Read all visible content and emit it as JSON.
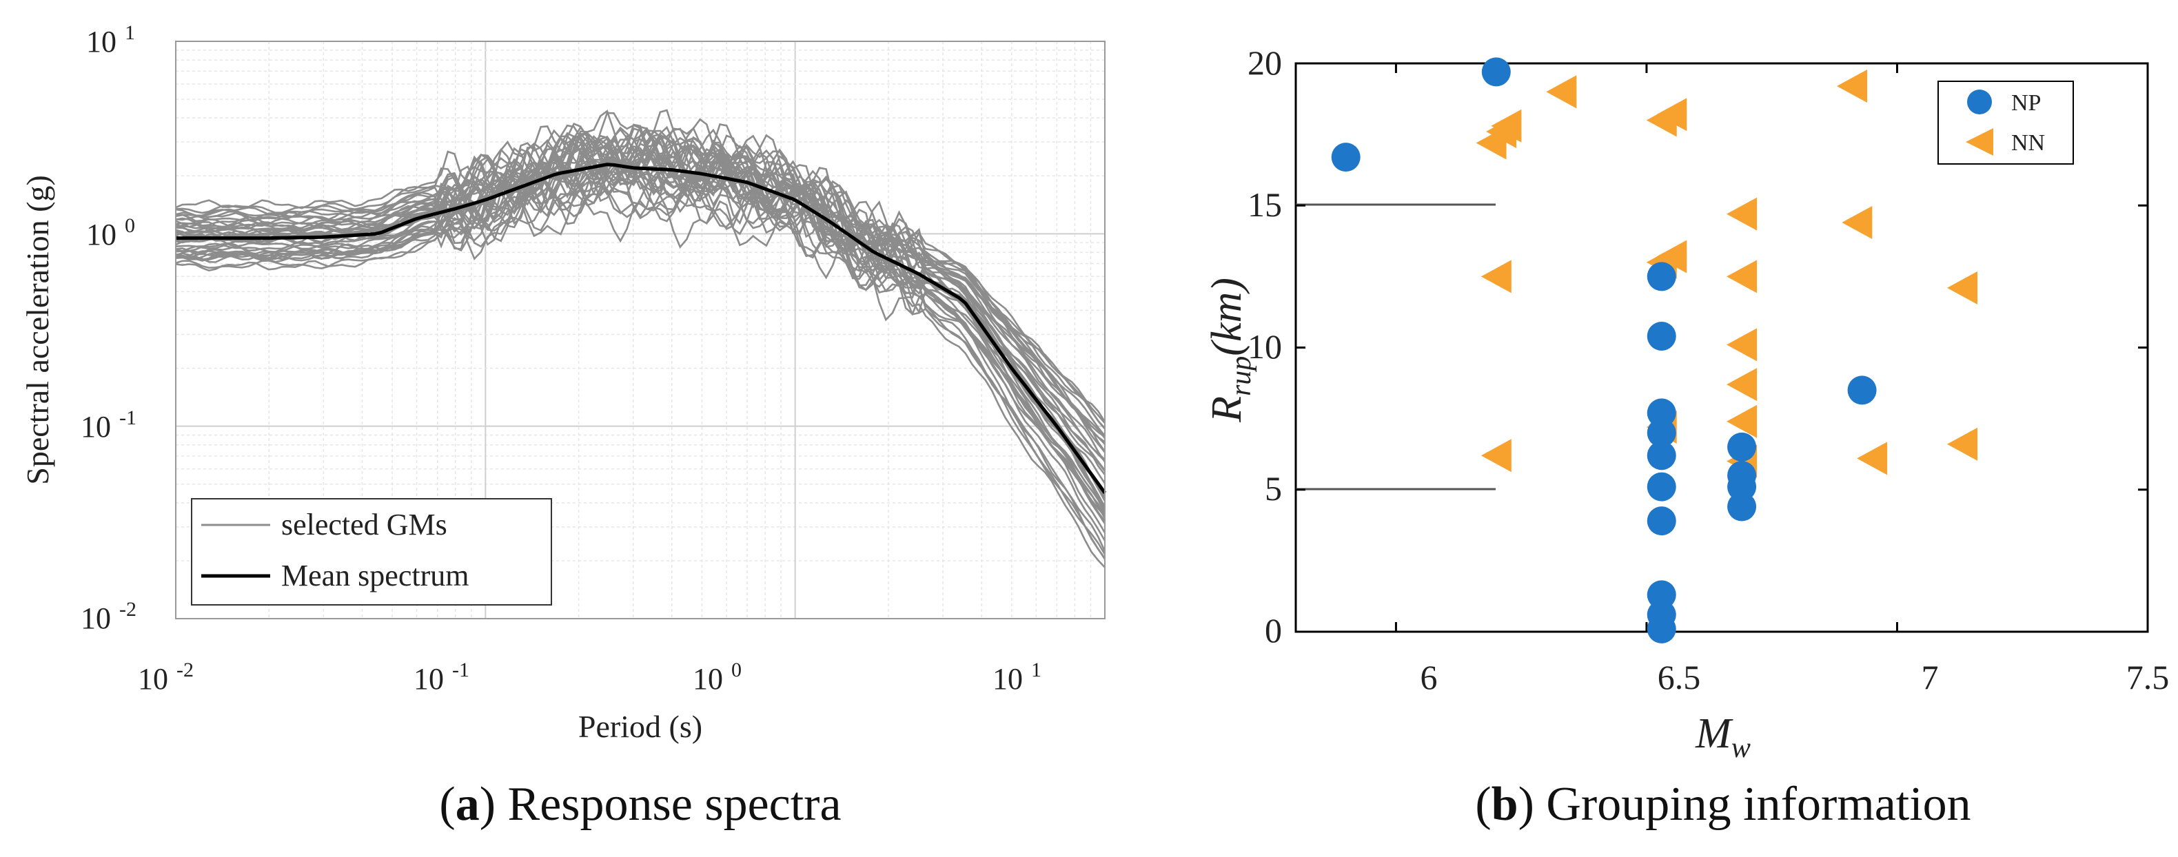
{
  "chart_data": [
    {
      "panel": "a",
      "type": "line",
      "scale": "log-log",
      "xlabel": "Period (s)",
      "ylabel": "Spectral acceleration (g)",
      "xlim": [
        0.01,
        10
      ],
      "ylim": [
        0.01,
        10
      ],
      "grid": true,
      "xticks": [
        {
          "base": "10",
          "exp": "-2"
        },
        {
          "base": "10",
          "exp": "-1"
        },
        {
          "base": "10",
          "exp": "0"
        },
        {
          "base": "10",
          "exp": "1"
        }
      ],
      "yticks": [
        {
          "base": "10",
          "exp": "-2"
        },
        {
          "base": "10",
          "exp": "-1"
        },
        {
          "base": "10",
          "exp": "0"
        },
        {
          "base": "10",
          "exp": "1"
        }
      ],
      "legend": {
        "position": "bottom-left",
        "entries": [
          "selected GMs",
          "Mean spectrum"
        ]
      },
      "colors": {
        "gms": "#8c8c8c",
        "mean": "#000000"
      },
      "mean_spectrum": {
        "x": [
          0.01,
          0.02,
          0.03,
          0.045,
          0.06,
          0.08,
          0.1,
          0.13,
          0.17,
          0.2,
          0.25,
          0.3,
          0.4,
          0.5,
          0.7,
          1.0,
          1.3,
          1.8,
          2.5,
          3.5,
          5.0,
          7.0,
          10.0
        ],
        "y": [
          0.95,
          0.95,
          0.96,
          1.0,
          1.2,
          1.35,
          1.5,
          1.75,
          2.05,
          2.15,
          2.3,
          2.2,
          2.15,
          2.05,
          1.85,
          1.5,
          1.15,
          0.8,
          0.62,
          0.45,
          0.2,
          0.1,
          0.045
        ]
      },
      "gm_count": 40,
      "caption": {
        "letter": "a",
        "text": "Response spectra"
      }
    },
    {
      "panel": "b",
      "type": "scatter",
      "xlabel": "M",
      "xlabel_sub": "w",
      "ylabel": "R",
      "ylabel_sub": "rup",
      "ylabel_suffix": "(km)",
      "xlim": [
        5.8,
        7.5
      ],
      "ylim": [
        0,
        20
      ],
      "xticks": [
        "6",
        "6.5",
        "7",
        "7.5"
      ],
      "yticks": [
        "0",
        "5",
        "10",
        "15",
        "20"
      ],
      "legend": {
        "position": "top-right"
      },
      "series": [
        {
          "name": "NP",
          "marker": "circle",
          "color": "#1f77c9",
          "points": [
            [
              5.9,
              16.7
            ],
            [
              6.2,
              19.7
            ],
            [
              6.53,
              12.5
            ],
            [
              6.53,
              10.4
            ],
            [
              6.53,
              7.7
            ],
            [
              6.53,
              7.0
            ],
            [
              6.53,
              6.2
            ],
            [
              6.53,
              5.1
            ],
            [
              6.53,
              3.9
            ],
            [
              6.53,
              1.3
            ],
            [
              6.53,
              0.6
            ],
            [
              6.53,
              0.1
            ],
            [
              6.69,
              6.5
            ],
            [
              6.69,
              5.5
            ],
            [
              6.69,
              5.1
            ],
            [
              6.69,
              4.4
            ],
            [
              6.93,
              8.5
            ]
          ]
        },
        {
          "name": "NN",
          "marker": "triangle-left",
          "color": "#f7a12e",
          "points": [
            [
              6.19,
              17.2
            ],
            [
              6.21,
              17.6
            ],
            [
              6.22,
              17.8
            ],
            [
              6.33,
              19.0
            ],
            [
              6.2,
              12.5
            ],
            [
              6.2,
              6.2
            ],
            [
              6.53,
              18.0
            ],
            [
              6.55,
              18.2
            ],
            [
              6.53,
              13.0
            ],
            [
              6.55,
              13.2
            ],
            [
              6.53,
              7.2
            ],
            [
              6.69,
              14.7
            ],
            [
              6.69,
              12.5
            ],
            [
              6.69,
              10.1
            ],
            [
              6.69,
              8.7
            ],
            [
              6.69,
              7.4
            ],
            [
              6.69,
              6.0
            ],
            [
              6.91,
              19.2
            ],
            [
              6.92,
              14.4
            ],
            [
              6.95,
              6.1
            ],
            [
              7.13,
              12.1
            ],
            [
              7.13,
              6.6
            ]
          ]
        }
      ],
      "caption": {
        "letter": "b",
        "text": "Grouping information"
      }
    }
  ]
}
